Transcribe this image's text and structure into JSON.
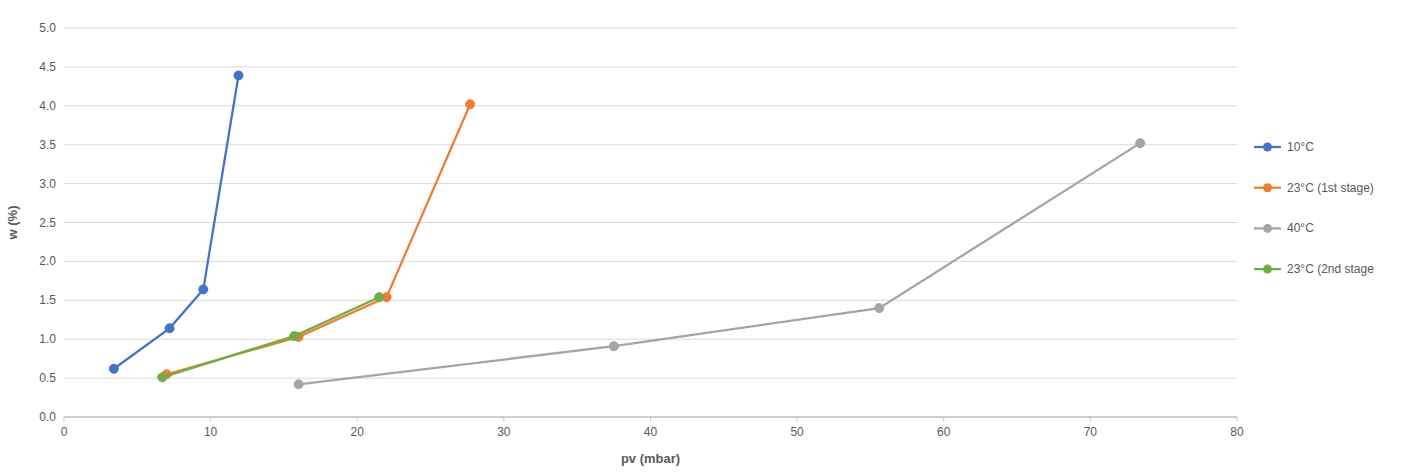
{
  "chart_data": {
    "type": "line",
    "x_label": "pv (mbar)",
    "y_label": "w (%)",
    "xlim": [
      0,
      80
    ],
    "xticks": [
      0,
      10,
      20,
      30,
      40,
      50,
      60,
      70,
      80
    ],
    "ylim": [
      0,
      5
    ],
    "yticks": [
      {
        "value": 0,
        "label": "0.0"
      },
      {
        "value": 0.5,
        "label": "0.5"
      },
      {
        "value": 1,
        "label": "1.0"
      },
      {
        "value": 1.5,
        "label": "1.5"
      },
      {
        "value": 2,
        "label": "2.0"
      },
      {
        "value": 2.5,
        "label": "2.5"
      },
      {
        "value": 3,
        "label": "3.0"
      },
      {
        "value": 3.5,
        "label": "3.5"
      },
      {
        "value": 4,
        "label": "4.0"
      },
      {
        "value": 4.5,
        "label": "4.5"
      },
      {
        "value": 5,
        "label": "5.0"
      }
    ],
    "grid": true,
    "legend": "right",
    "marker": "circle",
    "series": [
      {
        "name": "10°C",
        "color": "#4472c4",
        "x": [
          3.4,
          7.2,
          9.5,
          11.9
        ],
        "values": [
          0.62,
          1.14,
          1.64,
          4.39
        ]
      },
      {
        "name": "23°C (1st stage)",
        "color": "#ed7d31",
        "x": [
          7.0,
          16.0,
          22.0,
          27.7
        ],
        "values": [
          0.55,
          1.03,
          1.54,
          4.02
        ]
      },
      {
        "name": "40°C",
        "color": "#a5a5a5",
        "x": [
          16.0,
          37.5,
          55.6,
          73.4
        ],
        "values": [
          0.42,
          0.91,
          1.4,
          3.52
        ]
      },
      {
        "name": "23°C (2nd stage",
        "color": "#70ad47",
        "x": [
          6.7,
          15.7,
          21.5
        ],
        "values": [
          0.51,
          1.04,
          1.54
        ]
      }
    ]
  }
}
